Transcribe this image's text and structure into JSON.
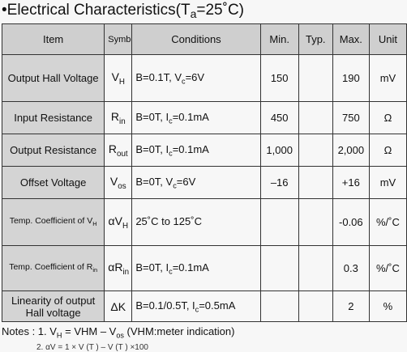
{
  "title": {
    "prefix": "•Electrical Characteristics(T",
    "sub": "a",
    "suffix": "=25˚C)"
  },
  "headers": {
    "item": "Item",
    "symbol": "Symbol",
    "conditions": "Conditions",
    "min": "Min.",
    "typ": "Typ.",
    "max": "Max.",
    "unit": "Unit"
  },
  "rows": [
    {
      "item": "Output Hall Voltage",
      "sym_main": "V",
      "sym_sub": "H",
      "cond_a": "B=0.1T, V",
      "cond_sub": "c",
      "cond_b": "=6V",
      "min": "150",
      "typ": "",
      "max": "190",
      "unit": "mV"
    },
    {
      "item": "Input Resistance",
      "sym_main": "R",
      "sym_sub": "in",
      "cond_a": "B=0T, I",
      "cond_sub": "c",
      "cond_b": "=0.1mA",
      "min": "450",
      "typ": "",
      "max": "750",
      "unit": "Ω"
    },
    {
      "item": "Output Resistance",
      "sym_main": "R",
      "sym_sub": "out",
      "cond_a": "B=0T, I",
      "cond_sub": "c",
      "cond_b": "=0.1mA",
      "min": "1,000",
      "typ": "",
      "max": "2,000",
      "unit": "Ω"
    },
    {
      "item": "Offset Voltage",
      "sym_main": "V",
      "sym_sub": "os",
      "cond_a": "B=0T, V",
      "cond_sub": "c",
      "cond_b": "=6V",
      "min": "–16",
      "typ": "",
      "max": "+16",
      "unit": "mV"
    },
    {
      "item_a": "Temp. Coefficient of V",
      "item_sub": "H",
      "sym_main": "αV",
      "sym_sub": "H",
      "cond_a": "25˚C to 125˚C",
      "cond_sub": "",
      "cond_b": "",
      "min": "",
      "typ": "",
      "max": "-0.06",
      "unit": "%/˚C"
    },
    {
      "item_a": "Temp. Coefficient of R",
      "item_sub": "in",
      "sym_main": "αR",
      "sym_sub": "in",
      "cond_a": "B=0T, I",
      "cond_sub": "c",
      "cond_b": "=0.1mA",
      "min": "",
      "typ": "",
      "max": "0.3",
      "unit": "%/˚C"
    },
    {
      "item_line1": "Linearity of output",
      "item_line2": "Hall voltage",
      "sym_main": "ΔK",
      "sym_sub": "",
      "cond_a": "B=0.1/0.5T, I",
      "cond_sub": "c",
      "cond_b": "=0.5mA",
      "min": "",
      "typ": "",
      "max": "2",
      "unit": "%"
    }
  ],
  "notes": {
    "line1_a": "Notes : 1. V",
    "line1_sub": "H",
    "line1_b": " = VHM – V",
    "line1_sub2": "os",
    "line1_c": "  (VHM:meter indication)",
    "line2": "2.   αV  =  1   ×  V  (T ) – V  (T )  ×100"
  }
}
